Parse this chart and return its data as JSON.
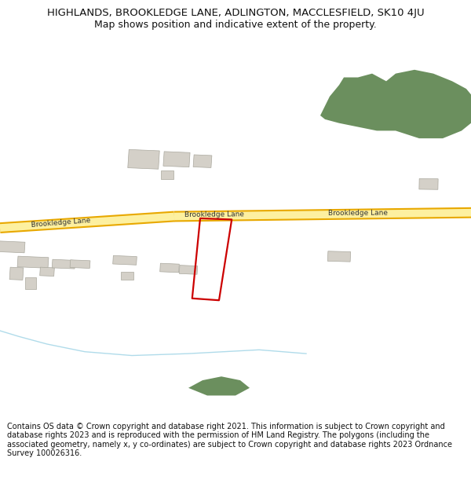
{
  "title": "HIGHLANDS, BROOKLEDGE LANE, ADLINGTON, MACCLESFIELD, SK10 4JU",
  "subtitle": "Map shows position and indicative extent of the property.",
  "footer": "Contains OS data © Crown copyright and database right 2021. This information is subject to Crown copyright and database rights 2023 and is reproduced with the permission of HM Land Registry. The polygons (including the associated geometry, namely x, y co-ordinates) are subject to Crown copyright and database rights 2023 Ordnance Survey 100026316.",
  "bg_color": "#ffffff",
  "map_bg": "#f2f0ec",
  "road_color": "#e8a800",
  "road_fill": "#fdf0a0",
  "building_color": "#d4d0c8",
  "building_edge": "#aaa89e",
  "green_color": "#6b8f5e",
  "water_color": "#a8d8e8",
  "plot_color": "#cc0000",
  "road_label": "Brookledge Lane",
  "title_fontsize": 9.5,
  "subtitle_fontsize": 9.0,
  "footer_fontsize": 7.0,
  "road_label_fontsize": 6.5,
  "road_lw_outer": 10,
  "road_lw_inner": 7
}
